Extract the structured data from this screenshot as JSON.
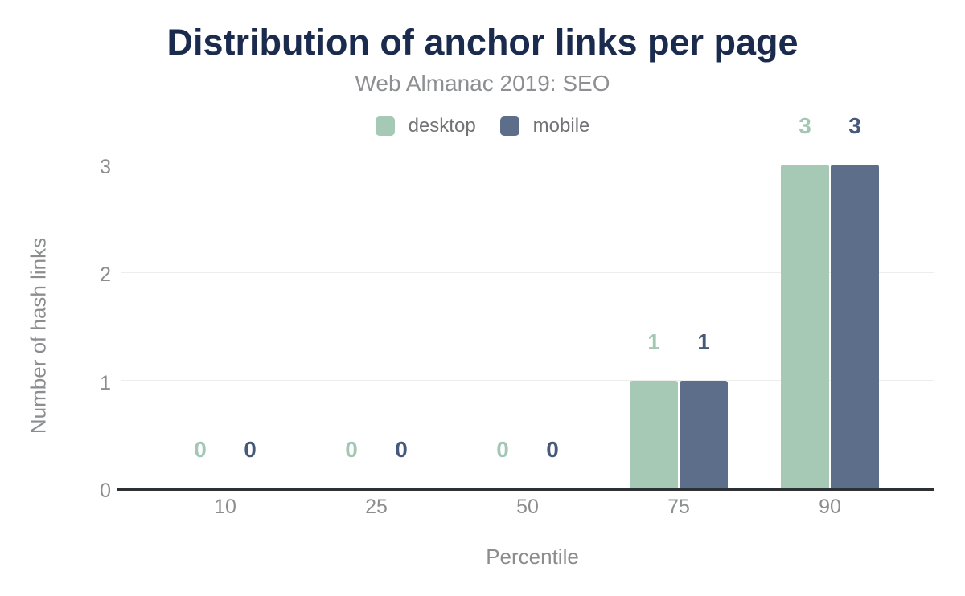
{
  "title": "Distribution of anchor links per page",
  "subtitle": "Web Almanac 2019: SEO",
  "chart_data": {
    "type": "bar",
    "categories": [
      "10",
      "25",
      "50",
      "75",
      "90"
    ],
    "series": [
      {
        "name": "desktop",
        "color": "#a6c9b6",
        "label_color": "#a3c7b3",
        "values": [
          0,
          0,
          0,
          1,
          3
        ]
      },
      {
        "name": "mobile",
        "color": "#5d6e8b",
        "label_color": "#46597b",
        "values": [
          0,
          0,
          0,
          1,
          3
        ]
      }
    ],
    "title": "Distribution of anchor links per page",
    "subtitle": "Web Almanac 2019: SEO",
    "xlabel": "Percentile",
    "ylabel": "Number of hash links",
    "ylim": [
      0,
      3
    ],
    "yticks": [
      0,
      1,
      2,
      3
    ],
    "grid": true,
    "legend_position": "top"
  },
  "colors": {
    "title": "#1b2b4e",
    "subtitle": "#8d8f92",
    "axis_text": "#8b8d8f",
    "legend_text": "#717376",
    "gridline": "#ededed",
    "axis_line": "#2d3134",
    "background": "#ffffff"
  }
}
